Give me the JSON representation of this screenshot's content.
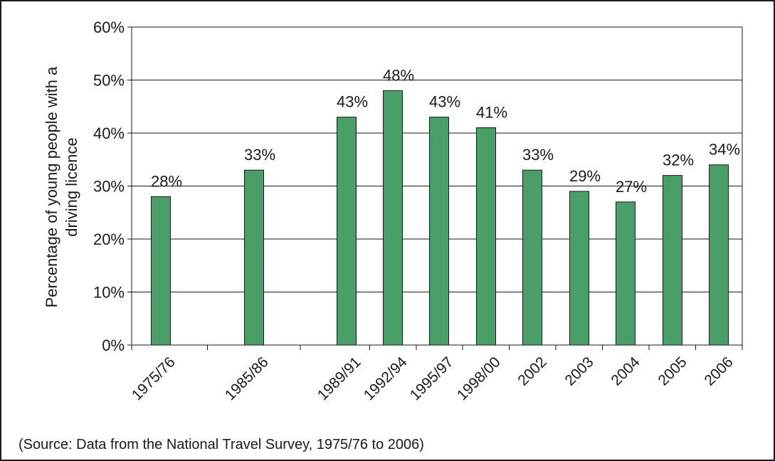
{
  "chart_data": {
    "type": "bar",
    "categories": [
      "1975/76",
      "1985/86",
      "1989/91",
      "1992/94",
      "1995/97",
      "1998/00",
      "2002",
      "2003",
      "2004",
      "2005",
      "2006"
    ],
    "values": [
      28,
      33,
      43,
      48,
      43,
      41,
      33,
      29,
      27,
      32,
      34
    ],
    "data_labels": [
      "28%",
      "33%",
      "43%",
      "48%",
      "43%",
      "41%",
      "33%",
      "29%",
      "27%",
      "32%",
      "34%"
    ],
    "ylabel_lines": [
      "Percentage of  young people with a",
      "driving licence"
    ],
    "ylim": [
      0,
      60
    ],
    "yticks": [
      0,
      10,
      20,
      30,
      40,
      50,
      60
    ],
    "ytick_labels": [
      "0%",
      "10%",
      "20%",
      "30%",
      "40%",
      "50%",
      "60%"
    ],
    "grid": true,
    "legend": "none",
    "colors": {
      "bar": "#4a9e68",
      "bar_edge": "#1a1a1a",
      "grid": "#1a1a1a"
    }
  },
  "source_text": "(Source: Data from the National Travel Survey, 1975/76 to 2006)"
}
